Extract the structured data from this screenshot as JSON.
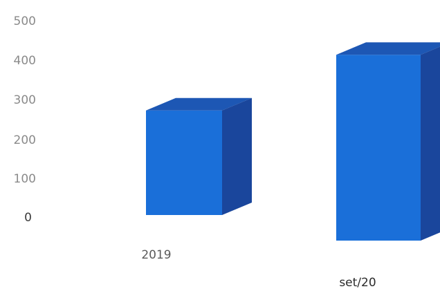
{
  "chart_data": {
    "type": "bar",
    "style": "3d-column",
    "categories": [
      "2019",
      "set/20"
    ],
    "values": [
      270,
      480
    ],
    "yticks": [
      "0",
      "100",
      "200",
      "300",
      "400",
      "500"
    ],
    "ylim": [
      0,
      500
    ],
    "grid": false,
    "legend": "none",
    "colors": {
      "front": "#1a6fd9",
      "top": "#1d57b4",
      "side": "#1a469c",
      "tick_text": "#8a8a8a"
    }
  }
}
